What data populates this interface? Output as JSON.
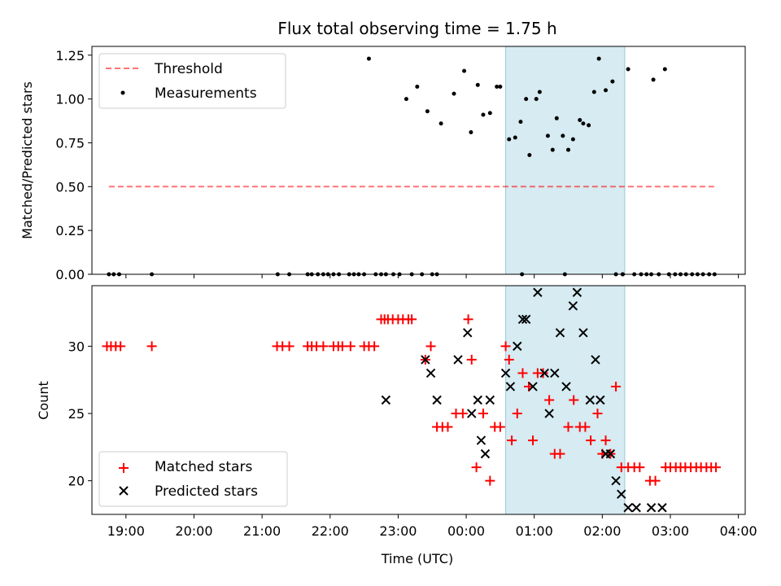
{
  "chart_data": [
    {
      "type": "scatter",
      "title": "Flux total observing time = 1.75 h",
      "xlabel": "",
      "ylabel": "Matched/Predicted stars",
      "ylim": [
        0,
        1.3
      ],
      "yticks": [
        0.0,
        0.25,
        0.5,
        0.75,
        1.0,
        1.25
      ],
      "ytick_labels": [
        "0.00",
        "0.25",
        "0.50",
        "0.75",
        "1.00",
        "1.25"
      ],
      "xlim_hours": [
        18.5,
        28.1
      ],
      "highlight_span_hours": [
        24.58,
        26.33
      ],
      "highlight_color": "#add8e6",
      "legend": {
        "placement": "upper-left",
        "entries": [
          "Threshold",
          "Measurements"
        ]
      },
      "threshold": {
        "name": "Threshold",
        "y": 0.5,
        "x_range_hours": [
          18.75,
          27.67
        ],
        "color": "#ff0000",
        "style": "dashed"
      },
      "measurements": {
        "name": "Measurements",
        "color": "#000000",
        "x_hours": [
          18.75,
          18.82,
          18.9,
          19.38,
          21.23,
          21.4,
          21.67,
          21.73,
          21.82,
          21.9,
          22.05,
          22.13,
          22.28,
          22.57,
          22.67,
          22.75,
          22.82,
          22.93,
          23.02,
          23.12,
          23.2,
          23.28,
          23.35,
          23.43,
          23.5,
          23.57,
          23.63,
          23.82,
          23.97,
          24.07,
          24.17,
          24.25,
          24.35,
          24.45,
          24.5,
          24.63,
          24.72,
          24.8,
          24.88,
          24.93,
          25.03,
          25.08,
          25.2,
          25.27,
          25.33,
          25.42,
          25.5,
          25.57,
          25.67,
          25.72,
          25.8,
          25.88,
          25.95,
          26.05,
          26.15,
          26.3,
          26.38,
          26.47,
          26.57,
          26.65,
          26.75,
          26.83,
          26.92,
          26.98,
          27.07,
          27.15,
          27.23,
          27.32,
          27.4,
          27.48,
          27.57,
          27.65
        ],
        "y": [
          0,
          0,
          0,
          0,
          0,
          0,
          0,
          0,
          0,
          0,
          0,
          0,
          0,
          1.23,
          0,
          0,
          0,
          0,
          0,
          1.0,
          0,
          1.07,
          0,
          0.93,
          0,
          0,
          0.86,
          1.03,
          1.16,
          0.81,
          1.08,
          0.91,
          0.92,
          1.07,
          1.07,
          0.77,
          0.78,
          0.87,
          1.0,
          0.68,
          1.0,
          1.04,
          0.79,
          0.71,
          0.89,
          0.79,
          0.71,
          0.77,
          0.88,
          0.86,
          0.85,
          1.04,
          1.23,
          1.05,
          1.1,
          0,
          1.17,
          0,
          0,
          0,
          1.11,
          0,
          1.17,
          0,
          0,
          0,
          0,
          0,
          0,
          0,
          0,
          0
        ],
        "x_hours_zero_extra": [
          21.97,
          22.35,
          22.42,
          22.5,
          24.82,
          25.45,
          26.2,
          26.3,
          26.72
        ]
      }
    },
    {
      "type": "scatter",
      "title": "",
      "xlabel": "Time (UTC)",
      "ylabel": "Count",
      "ylim": [
        17.5,
        34.5
      ],
      "yticks": [
        20,
        25,
        30
      ],
      "ytick_labels": [
        "20",
        "25",
        "30"
      ],
      "xlim_hours": [
        18.5,
        28.1
      ],
      "xticks_hours": [
        19,
        20,
        21,
        22,
        23,
        24,
        25,
        26,
        27,
        28
      ],
      "xtick_labels": [
        "19:00",
        "20:00",
        "21:00",
        "22:00",
        "23:00",
        "00:00",
        "01:00",
        "02:00",
        "03:00",
        "04:00"
      ],
      "highlight_span_hours": [
        24.58,
        26.33
      ],
      "highlight_color": "#add8e6",
      "legend": {
        "placement": "lower-left",
        "entries": [
          "Matched stars",
          "Predicted stars"
        ]
      },
      "matched": {
        "name": "Matched stars",
        "color": "#ff0000",
        "marker": "plus",
        "x_hours": [
          18.72,
          18.78,
          18.85,
          18.92,
          19.38,
          21.22,
          21.3,
          21.4,
          21.67,
          21.73,
          21.8,
          21.9,
          22.05,
          22.12,
          22.18,
          22.3,
          22.5,
          22.57,
          22.65,
          22.75,
          22.8,
          22.85,
          22.92,
          23.0,
          23.07,
          23.15,
          23.2,
          23.4,
          23.48,
          23.57,
          23.65,
          23.73,
          23.85,
          23.95,
          24.03,
          24.08,
          24.15,
          24.25,
          24.35,
          24.42,
          24.5,
          24.58,
          24.63,
          24.67,
          24.75,
          24.83,
          24.92,
          24.98,
          25.05,
          25.13,
          25.22,
          25.3,
          25.38,
          25.5,
          25.58,
          25.67,
          25.75,
          25.83,
          25.93,
          26.0,
          26.05,
          26.12,
          26.2,
          26.28,
          26.38,
          26.47,
          26.55,
          26.7,
          26.78,
          26.93,
          27.0,
          27.08,
          27.15,
          27.22,
          27.3,
          27.38,
          27.45,
          27.53,
          27.6,
          27.67
        ],
        "y": [
          30,
          30,
          30,
          30,
          30,
          30,
          30,
          30,
          30,
          30,
          30,
          30,
          30,
          30,
          30,
          30,
          30,
          30,
          30,
          32,
          32,
          32,
          32,
          32,
          32,
          32,
          32,
          29,
          30,
          24,
          24,
          24,
          25,
          25,
          32,
          29,
          21,
          25,
          20,
          24,
          24,
          30,
          29,
          23,
          25,
          28,
          27,
          23,
          28,
          28,
          26,
          22,
          22,
          24,
          26,
          24,
          24,
          23,
          25,
          22,
          23,
          22,
          27,
          21,
          21,
          21,
          21,
          20,
          20,
          21,
          21,
          21,
          21,
          21,
          21,
          21,
          21,
          21,
          21,
          21
        ]
      },
      "predicted": {
        "name": "Predicted stars",
        "color": "#000000",
        "marker": "x",
        "x_hours": [
          22.82,
          23.4,
          23.48,
          23.57,
          23.88,
          24.02,
          24.08,
          24.17,
          24.22,
          24.28,
          24.35,
          24.58,
          24.65,
          24.75,
          24.83,
          24.88,
          24.98,
          25.05,
          25.15,
          25.22,
          25.3,
          25.38,
          25.47,
          25.57,
          25.63,
          25.72,
          25.82,
          25.9,
          25.97,
          26.05,
          26.12,
          26.2,
          26.28,
          26.38,
          26.5,
          26.72,
          26.88
        ],
        "y": [
          26,
          29,
          28,
          26,
          29,
          31,
          25,
          26,
          23,
          22,
          26,
          28,
          27,
          30,
          32,
          32,
          27,
          34,
          28,
          25,
          28,
          31,
          27,
          33,
          34,
          31,
          26,
          29,
          26,
          22,
          22,
          20,
          19,
          18,
          18,
          18,
          18
        ]
      }
    }
  ]
}
